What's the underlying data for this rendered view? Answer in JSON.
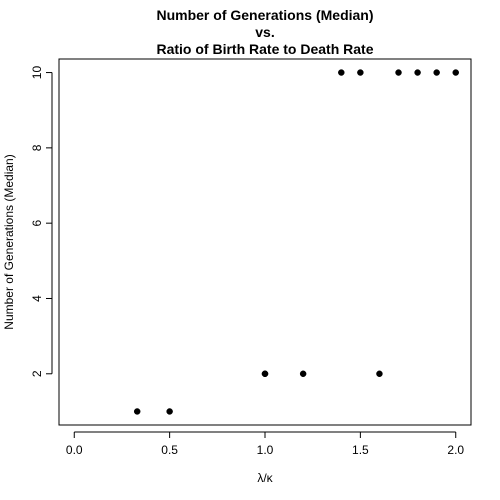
{
  "chart_data": {
    "type": "scatter",
    "title_lines": [
      "Number of Generations (Median)",
      "vs.",
      "Ratio of Birth Rate to Death Rate"
    ],
    "xlabel": "λ/κ",
    "ylabel": "Number of Generations (Median)",
    "xlim": [
      -0.08,
      2.08
    ],
    "ylim": [
      0.64,
      10.36
    ],
    "x_ticks": [
      0.0,
      0.5,
      1.0,
      1.5,
      2.0
    ],
    "x_tick_labels": [
      "0.0",
      "0.5",
      "1.0",
      "1.5",
      "2.0"
    ],
    "y_ticks": [
      2,
      4,
      6,
      8,
      10
    ],
    "y_tick_labels": [
      "2",
      "4",
      "6",
      "8",
      "10"
    ],
    "grid": false,
    "marker_color": "#000000",
    "points": [
      {
        "x": 0.33,
        "y": 1
      },
      {
        "x": 0.5,
        "y": 1
      },
      {
        "x": 1.0,
        "y": 2
      },
      {
        "x": 1.0,
        "y": 2
      },
      {
        "x": 1.2,
        "y": 2
      },
      {
        "x": 1.6,
        "y": 2
      },
      {
        "x": 1.4,
        "y": 10
      },
      {
        "x": 1.5,
        "y": 10
      },
      {
        "x": 1.7,
        "y": 10
      },
      {
        "x": 1.8,
        "y": 10
      },
      {
        "x": 1.9,
        "y": 10
      },
      {
        "x": 2.0,
        "y": 10
      }
    ]
  }
}
